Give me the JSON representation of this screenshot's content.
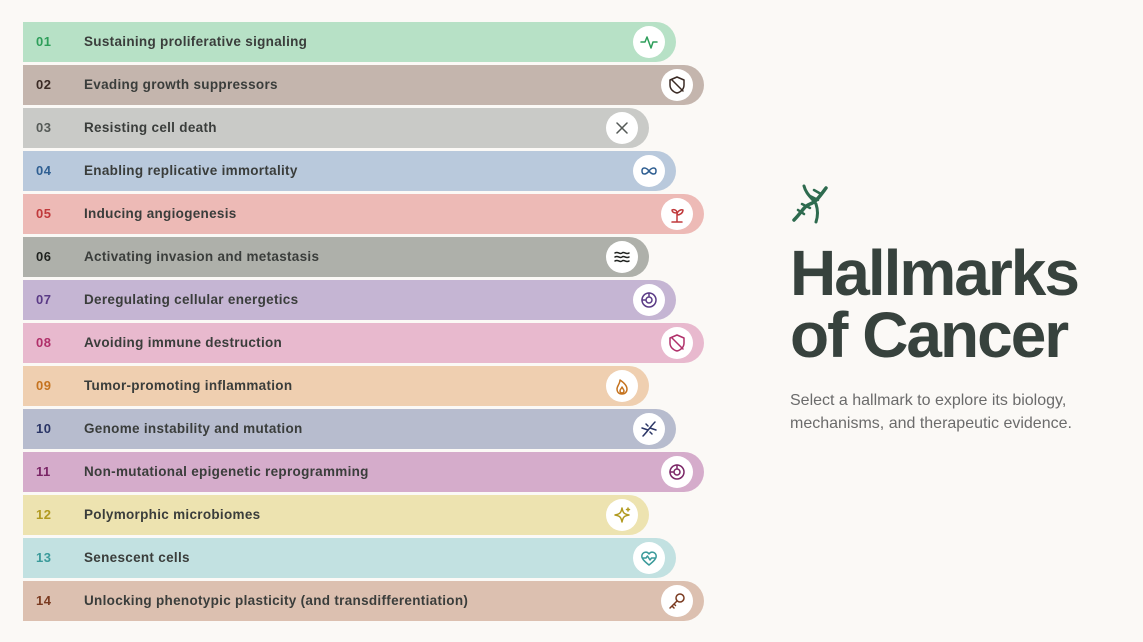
{
  "hallmarks": [
    {
      "number": "01",
      "label": "Sustaining proliferative signaling"
    },
    {
      "number": "02",
      "label": "Evading growth suppressors"
    },
    {
      "number": "03",
      "label": "Resisting cell death"
    },
    {
      "number": "04",
      "label": "Enabling replicative immortality"
    },
    {
      "number": "05",
      "label": "Inducing angiogenesis"
    },
    {
      "number": "06",
      "label": "Activating invasion and metastasis"
    },
    {
      "number": "07",
      "label": "Deregulating cellular energetics"
    },
    {
      "number": "08",
      "label": "Avoiding immune destruction"
    },
    {
      "number": "09",
      "label": "Tumor-promoting inflammation"
    },
    {
      "number": "10",
      "label": "Genome instability and mutation"
    },
    {
      "number": "11",
      "label": "Non-mutational epigenetic reprogramming"
    },
    {
      "number": "12",
      "label": "Polymorphic microbiomes"
    },
    {
      "number": "13",
      "label": "Senescent cells"
    },
    {
      "number": "14",
      "label": "Unlocking phenotypic plasticity (and transdifferentiation)"
    }
  ],
  "intro": {
    "title_line_1": "Hallmarks",
    "title_line_2": "of Cancer",
    "description": "Select a hallmark to explore its biology, mechanisms, and therapeutic evidence."
  }
}
